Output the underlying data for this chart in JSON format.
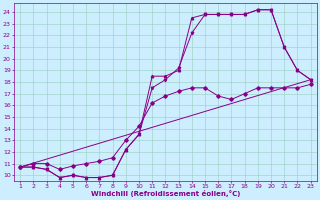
{
  "xlabel": "Windchill (Refroidissement éolien,°C)",
  "bg_color": "#cceeff",
  "grid_color": "#99ccbb",
  "line_color": "#880088",
  "x_ticks": [
    1,
    2,
    3,
    4,
    5,
    6,
    7,
    8,
    9,
    10,
    11,
    12,
    13,
    14,
    15,
    16,
    17,
    18,
    19,
    20,
    21,
    22,
    23
  ],
  "y_ticks": [
    10,
    11,
    12,
    13,
    14,
    15,
    16,
    17,
    18,
    19,
    20,
    21,
    22,
    23,
    24
  ],
  "xlim": [
    0.5,
    23.5
  ],
  "ylim": [
    9.5,
    24.8
  ],
  "line1_x": [
    1,
    2,
    3,
    4,
    5,
    6,
    7,
    8,
    9,
    10,
    11,
    12,
    13,
    14,
    15,
    16,
    17,
    18,
    19,
    20,
    21,
    22,
    23
  ],
  "line1_y": [
    10.7,
    10.7,
    10.5,
    9.8,
    10.0,
    9.8,
    9.8,
    10.0,
    12.2,
    13.5,
    18.5,
    18.5,
    19.0,
    23.5,
    23.8,
    23.8,
    23.8,
    23.8,
    24.2,
    24.2,
    21.0,
    19.0,
    18.2
  ],
  "line2_x": [
    1,
    2,
    3,
    4,
    5,
    6,
    7,
    8,
    9,
    10,
    11,
    12,
    13,
    14,
    15,
    16,
    17,
    18,
    19,
    20,
    21,
    22,
    23
  ],
  "line2_y": [
    10.7,
    10.7,
    10.5,
    9.8,
    10.0,
    9.8,
    9.8,
    10.0,
    12.2,
    13.5,
    17.5,
    18.2,
    19.2,
    22.2,
    23.8,
    23.8,
    23.8,
    23.8,
    24.2,
    24.2,
    21.0,
    19.0,
    18.2
  ],
  "line3_x": [
    1,
    23
  ],
  "line3_y": [
    10.7,
    18.2
  ],
  "line4_x": [
    1,
    2,
    3,
    4,
    5,
    6,
    7,
    8,
    9,
    10,
    11,
    12,
    13,
    14,
    15,
    16,
    17,
    18,
    19,
    20,
    21,
    22,
    23
  ],
  "line4_y": [
    10.7,
    11.0,
    11.0,
    10.5,
    10.8,
    11.0,
    11.2,
    11.5,
    13.0,
    14.2,
    16.2,
    16.8,
    17.2,
    17.5,
    17.5,
    16.8,
    16.5,
    17.0,
    17.5,
    17.5,
    17.5,
    17.5,
    17.8
  ],
  "xlabel_fontsize": 5.0,
  "tick_fontsize": 4.5
}
